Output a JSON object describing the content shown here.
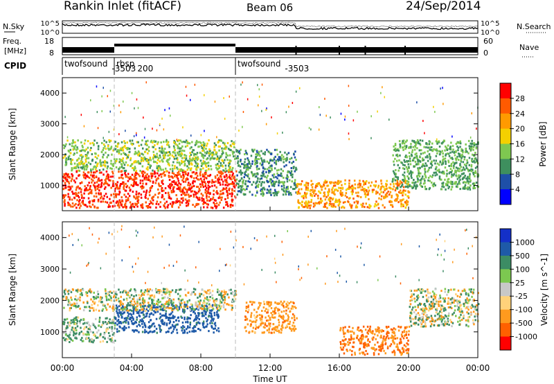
{
  "header": {
    "station": "Rankin Inlet (fitACF)",
    "beam": "Beam 06",
    "date": "24/Sep/2014"
  },
  "noise_panel": {
    "left_label": "N.Sky",
    "right_label": "N.Search",
    "ytick_top": "10^5",
    "ytick_bottom": "10^0",
    "rtick_top": "10^5",
    "rtick_bottom": "10^0"
  },
  "freq_panel": {
    "left_label_1": "Freq.",
    "left_label_2": "[MHz]",
    "ytick_top": "18",
    "ytick_bottom": "8",
    "right_label": "Nave",
    "rtick_top": "60",
    "rtick_bottom": "0"
  },
  "cpid": {
    "label": "CPID",
    "segments": [
      {
        "name": "twofsound",
        "id": "-3503",
        "start": 0.0,
        "end": 3.0
      },
      {
        "name": "rbsp",
        "id": "200",
        "start": 3.0,
        "end": 10.0
      },
      {
        "name": "twofsound",
        "id": "-3503",
        "start": 10.0,
        "end": 24.0
      }
    ]
  },
  "power_panel": {
    "ylabel": "Slant Range [km]",
    "colorbar_label": "Power [dB]",
    "colorbar_ticks": [
      "28",
      "24",
      "20",
      "16",
      "12",
      "8",
      "4"
    ],
    "colors": [
      "#ff0000",
      "#ff5a00",
      "#ff9a00",
      "#f4d000",
      "#7ec850",
      "#3e8f5e",
      "#1e4fa8",
      "#0000ff"
    ]
  },
  "velocity_panel": {
    "ylabel": "Slant Range [km]",
    "colorbar_label": "Velocity [m s^-1]",
    "colorbar_ticks": [
      "1000",
      "500",
      "100",
      "25",
      "-25",
      "-100",
      "-500",
      "-1000"
    ],
    "colors": [
      "#1430c8",
      "#1e5aa8",
      "#3c8c64",
      "#7cc850",
      "#c8c8c8",
      "#ffd27a",
      "#ff9a1e",
      "#ff6000",
      "#ff0000"
    ]
  },
  "x_axis": {
    "label": "Time UT",
    "ticks": [
      "00:00",
      "04:00",
      "08:00",
      "12:00",
      "16:00",
      "20:00",
      "00:00"
    ]
  },
  "y_axis": {
    "ticks": [
      "1000",
      "2000",
      "3000",
      "4000"
    ]
  },
  "chart_data": {
    "type": "heatmap",
    "title": "Rankin Inlet (fitACF)",
    "xlabel": "Time UT",
    "ylabel": "Slant Range [km]",
    "xlim": [
      0,
      24
    ],
    "ylim": [
      180,
      4500
    ],
    "series": [
      {
        "name": "Power [dB]",
        "zlim": [
          0,
          32
        ],
        "regions": [
          {
            "t0": 0.0,
            "t1": 10.0,
            "r0": 300,
            "r1": 1500,
            "value": 28
          },
          {
            "t0": 0.0,
            "t1": 10.0,
            "r0": 1500,
            "r1": 2500,
            "value": 14
          },
          {
            "t0": 10.0,
            "t1": 13.5,
            "r0": 700,
            "r1": 2200,
            "value": 10
          },
          {
            "t0": 13.5,
            "t1": 20.0,
            "r0": 300,
            "r1": 1200,
            "value": 22
          },
          {
            "t0": 19.0,
            "t1": 24.0,
            "r0": 900,
            "r1": 2500,
            "value": 12
          }
        ]
      },
      {
        "name": "Velocity [m s^-1]",
        "zlim": [
          -1000,
          1000
        ],
        "regions": [
          {
            "t0": 0.0,
            "t1": 3.0,
            "r0": 700,
            "r1": 1500,
            "value": 150
          },
          {
            "t0": 3.0,
            "t1": 9.0,
            "r0": 1000,
            "r1": 1900,
            "value": 700
          },
          {
            "t0": 0.0,
            "t1": 10.0,
            "r0": 1700,
            "r1": 2400,
            "value": 0
          },
          {
            "t0": 10.5,
            "t1": 13.5,
            "r0": 1000,
            "r1": 2000,
            "value": -300
          },
          {
            "t0": 16.0,
            "t1": 20.0,
            "r0": 300,
            "r1": 1200,
            "value": -500
          },
          {
            "t0": 20.0,
            "t1": 24.0,
            "r0": 1200,
            "r1": 2400,
            "value": 0
          }
        ]
      }
    ]
  }
}
